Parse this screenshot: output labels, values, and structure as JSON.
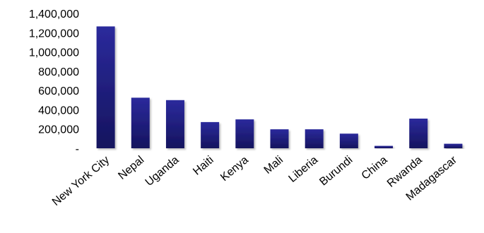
{
  "chart_data": {
    "type": "bar",
    "categories": [
      "New York City",
      "Nepal",
      "Uganda",
      "Haiti",
      "Kenya",
      "Mali",
      "Liberia",
      "Burundi",
      "China",
      "Rwanda",
      "Madagascar"
    ],
    "values": [
      1265000,
      525000,
      500000,
      272000,
      300000,
      197000,
      197000,
      152000,
      25000,
      308000,
      47000
    ],
    "ylim": [
      0,
      1400000
    ],
    "yticks": [
      0,
      200000,
      400000,
      600000,
      800000,
      1000000,
      1200000,
      1400000
    ],
    "ytick_labels": [
      "-",
      "200,000",
      "400,000",
      "600,000",
      "800,000",
      "1,000,000",
      "1,200,000",
      "1,400,000"
    ],
    "grid": false,
    "legend": "none",
    "bar_color_top": "#2b2a9c",
    "bar_color_bottom": "#15145e",
    "title": "",
    "xlabel": "",
    "ylabel": ""
  }
}
